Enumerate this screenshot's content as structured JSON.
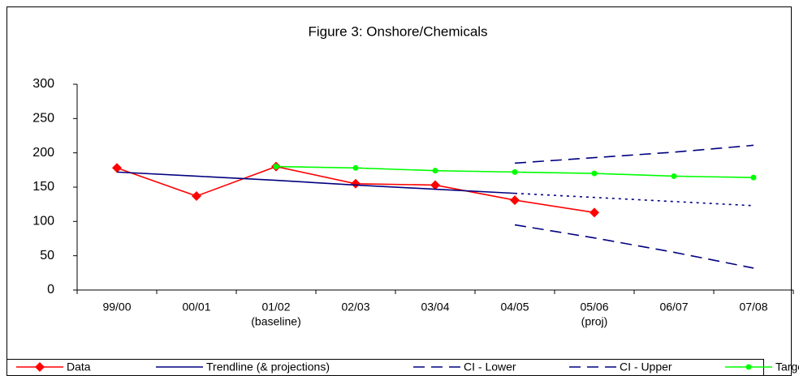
{
  "chart_data": {
    "type": "line",
    "title": "Figure 3: Onshore/Chemicals",
    "categories": [
      "99/00",
      "00/01",
      "01/02",
      "02/03",
      "03/04",
      "04/05",
      "05/06",
      "06/07",
      "07/08"
    ],
    "category_sublabels": [
      null,
      null,
      "(baseline)",
      null,
      null,
      null,
      "(proj)",
      null,
      null
    ],
    "ylim": [
      0,
      300
    ],
    "yticks": [
      0,
      50,
      100,
      150,
      200,
      250,
      300
    ],
    "grid": false,
    "legend": "bottom",
    "series": [
      {
        "name": "Data",
        "color": "#ff0000",
        "marker": "diamond",
        "dash": "solid",
        "values": [
          178,
          137,
          180,
          155,
          153,
          131,
          113,
          null,
          null
        ]
      },
      {
        "name": "Trendline (& projections)",
        "color": "#000080",
        "marker": "none",
        "dash": "solid",
        "dash_from": 5,
        "values": [
          172,
          166,
          160,
          153,
          147,
          141,
          135,
          129,
          123
        ]
      },
      {
        "name": "CI - Lower",
        "color": "#000080",
        "marker": "none",
        "dash": "dashed",
        "values": [
          null,
          null,
          null,
          null,
          null,
          95,
          76,
          55,
          32
        ]
      },
      {
        "name": "CI - Upper",
        "color": "#000080",
        "marker": "none",
        "dash": "dashed",
        "values": [
          null,
          null,
          null,
          null,
          null,
          185,
          193,
          201,
          211
        ]
      },
      {
        "name": "Target",
        "color": "#00ff00",
        "marker": "circle",
        "dash": "solid",
        "values": [
          null,
          null,
          180,
          178,
          174,
          172,
          170,
          166,
          164
        ]
      }
    ]
  }
}
